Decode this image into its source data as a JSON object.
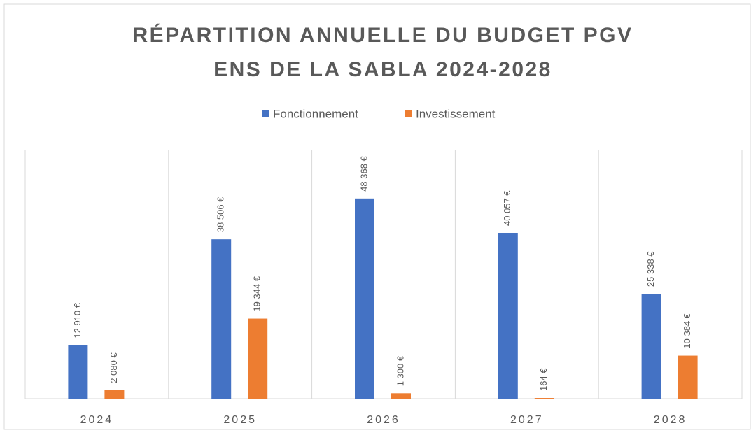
{
  "chart_data": {
    "type": "bar",
    "title": [
      "RÉPARTITION ANNUELLE DU BUDGET  PGV",
      "ENS DE LA SABLA 2024-2028"
    ],
    "categories": [
      "2024",
      "2025",
      "2026",
      "2027",
      "2028"
    ],
    "series": [
      {
        "name": "Fonctionnement",
        "color": "#4472c4",
        "values": [
          12910,
          38506,
          48368,
          40057,
          25338
        ],
        "value_labels": [
          "12 910 €",
          "38 506 €",
          "48 368 €",
          "40 057 €",
          "25 338 €"
        ]
      },
      {
        "name": "Investissement",
        "color": "#ed7d31",
        "values": [
          2080,
          19344,
          1300,
          164,
          10384
        ],
        "value_labels": [
          "2 080 €",
          "19 344 €",
          "1 300 €",
          "164 €",
          "10 384 €"
        ]
      }
    ],
    "ylim": [
      0,
      60000
    ],
    "legend": "top"
  }
}
